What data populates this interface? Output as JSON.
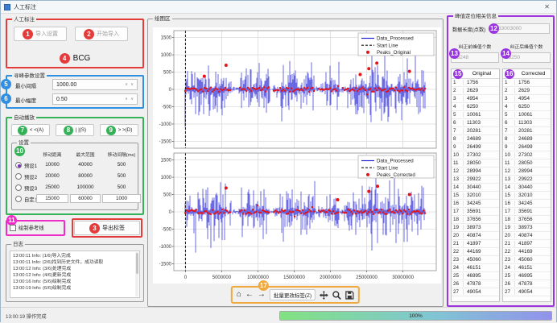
{
  "window": {
    "title": "人工标注",
    "close_glyph": "✕"
  },
  "glyphs": {
    "spin_up": "∧",
    "spin_down": "∨",
    "home": "⌂",
    "back": "←",
    "forward": "→"
  },
  "annotation_colors": {
    "red": "#e43b3b",
    "blue": "#2f8fe0",
    "green": "#35b257",
    "magenta": "#f02cc8",
    "purple": "#9a35e0",
    "orange": "#f0a93c"
  },
  "left": {
    "group1": {
      "title": "人工标注",
      "import_settings": {
        "badge": "1",
        "label": "导入设置"
      },
      "start_import": {
        "badge": "2",
        "label": "开始导入"
      },
      "signal_type": {
        "badge": "4",
        "label": "BCG"
      }
    },
    "peak_params": {
      "title": "寻峰参数设置",
      "min_interval": {
        "badge": "5",
        "label": "最小间隔",
        "value": "1000.00"
      },
      "min_amplitude": {
        "badge": "6",
        "label": "最小幅度",
        "value": "0.50"
      }
    },
    "autoplay": {
      "title": "自动播放",
      "btn_left": {
        "badge": "7",
        "label": "< <(A)"
      },
      "btn_pause": {
        "badge": "8",
        "label": "| |(S)"
      },
      "btn_right": {
        "badge": "9",
        "label": "> >(D)"
      },
      "settings": {
        "badge": "10",
        "title": "设置",
        "columns": [
          "移动距离",
          "最大范围",
          "移动间隔(ms)"
        ],
        "presets": [
          {
            "label": "预设1",
            "selected": true,
            "editable": false,
            "values": [
              "10000",
              "40000",
              "500"
            ]
          },
          {
            "label": "预设2",
            "selected": false,
            "editable": false,
            "values": [
              "20000",
              "80000",
              "500"
            ]
          },
          {
            "label": "预设3",
            "selected": false,
            "editable": false,
            "values": [
              "25000",
              "100000",
              "500"
            ]
          },
          {
            "label": "自定义",
            "selected": false,
            "editable": true,
            "values": [
              "15000",
              "60000",
              "1000"
            ]
          }
        ]
      }
    },
    "ref_line": {
      "badge": "11",
      "label": "绘制参考线",
      "checked": false
    },
    "export": {
      "badge": "3",
      "label": "导出标签"
    },
    "log": {
      "title": "日志",
      "lines": [
        "13:00:11 Info: (1/6)导入完成",
        "13:00:11 Info: (2/6)找到历史文件，成功读取",
        "13:00:12 Info: (3/6)处理完成",
        "13:00:12 Info: (4/6)更新完成",
        "13:00:16 Info: (5/6)绘制完成",
        "13:00:19 Info: (6/6)绘制完成"
      ]
    }
  },
  "plot": {
    "title": "绘图区",
    "toolbar": {
      "badge": "17",
      "batch_label": "批量更改标签(Z)"
    }
  },
  "right": {
    "title": "峰值定位相关信息",
    "data_length": {
      "badge": "12",
      "label": "数据长度(点数)",
      "value": "33003000"
    },
    "before": {
      "badge": "13",
      "label": "纠正前峰值个数",
      "value": "25248"
    },
    "after": {
      "badge": "14",
      "label": "纠正后峰值个数",
      "value": "25250"
    },
    "original": {
      "badge": "15",
      "header": "Original"
    },
    "corrected": {
      "badge": "16",
      "header": "Corrected"
    },
    "rows": [
      {
        "n": 1,
        "original": 1756,
        "corrected": 1756
      },
      {
        "n": 2,
        "original": 2629,
        "corrected": 2629
      },
      {
        "n": 3,
        "original": 4954,
        "corrected": 4954
      },
      {
        "n": 4,
        "original": 6250,
        "corrected": 6250
      },
      {
        "n": 5,
        "original": 10061,
        "corrected": 10061
      },
      {
        "n": 6,
        "original": 11303,
        "corrected": 11303
      },
      {
        "n": 7,
        "original": 20281,
        "corrected": 20281
      },
      {
        "n": 8,
        "original": 24689,
        "corrected": 24689
      },
      {
        "n": 9,
        "original": 26499,
        "corrected": 26499
      },
      {
        "n": 10,
        "original": 27302,
        "corrected": 27302
      },
      {
        "n": 11,
        "original": 28050,
        "corrected": 28050
      },
      {
        "n": 12,
        "original": 28994,
        "corrected": 28994
      },
      {
        "n": 13,
        "original": 29922,
        "corrected": 29922
      },
      {
        "n": 14,
        "original": 30440,
        "corrected": 30440
      },
      {
        "n": 15,
        "original": 32010,
        "corrected": 32010
      },
      {
        "n": 16,
        "original": 34245,
        "corrected": 34245
      },
      {
        "n": 17,
        "original": 35691,
        "corrected": 35691
      },
      {
        "n": 18,
        "original": 37656,
        "corrected": 37656
      },
      {
        "n": 19,
        "original": 38973,
        "corrected": 38973
      },
      {
        "n": 20,
        "original": 40874,
        "corrected": 40874
      },
      {
        "n": 21,
        "original": 41897,
        "corrected": 41897
      },
      {
        "n": 22,
        "original": 44169,
        "corrected": 44169
      },
      {
        "n": 23,
        "original": 45060,
        "corrected": 45060
      },
      {
        "n": 24,
        "original": 46151,
        "corrected": 46151
      },
      {
        "n": 25,
        "original": 46995,
        "corrected": 46995
      },
      {
        "n": 26,
        "original": 47878,
        "corrected": 47878
      },
      {
        "n": 27,
        "original": 49054,
        "corrected": 49054
      }
    ]
  },
  "statusbar": {
    "text": "13:00:19 操作完成",
    "progress": "100%"
  },
  "chart_data": [
    {
      "type": "line",
      "title": "",
      "xlim": [
        -1600000,
        34600000
      ],
      "ylim": [
        -1700,
        1700
      ],
      "xticks": [
        0,
        5000000,
        10000000,
        15000000,
        20000000,
        25000000,
        30000000
      ],
      "yticks": [
        -1500,
        -1000,
        -500,
        0,
        500,
        1000,
        1500
      ],
      "grid": true,
      "show_x_tick_labels": false,
      "legend_position": "upper right",
      "legend": [
        {
          "label": "Data_Processed",
          "color": "#2121d8",
          "marker": "line"
        },
        {
          "label": "Start Line",
          "color": "#111111",
          "marker": "dashed"
        },
        {
          "label": "Peaks_Original",
          "color": "#e81212",
          "marker": "dot"
        }
      ],
      "start_line_x": 0,
      "signal_color": "#2121d8",
      "peaks_color": "#e81212",
      "baseline_range": [
        -100000,
        33150000
      ],
      "baseline_amplitude": 100,
      "signal_bursts": [
        [
          -100000,
          1400000,
          1350
        ],
        [
          1400000,
          3000000,
          900
        ],
        [
          3000000,
          5600000,
          1150
        ],
        [
          5600000,
          6300000,
          450
        ],
        [
          7300000,
          11700000,
          1000
        ],
        [
          12100000,
          13000000,
          300
        ],
        [
          13000000,
          17900000,
          980
        ],
        [
          18300000,
          19200000,
          260
        ],
        [
          19200000,
          21200000,
          900
        ],
        [
          21600000,
          22300000,
          320
        ],
        [
          22300000,
          25600000,
          1050
        ],
        [
          25600000,
          28200000,
          1300
        ],
        [
          28200000,
          31600000,
          1100
        ],
        [
          31600000,
          33100000,
          1450
        ]
      ],
      "peak_band": {
        "y_center": 0,
        "y_jitter": 70
      },
      "outlier_peaks": [
        [
          2600000,
          380
        ],
        [
          5600000,
          700
        ],
        [
          24100000,
          430
        ],
        [
          25300000,
          600
        ],
        [
          26400000,
          760
        ],
        [
          30900000,
          520
        ]
      ],
      "seed": 7
    },
    {
      "type": "line",
      "title": "",
      "xlim": [
        -1600000,
        34600000
      ],
      "ylim": [
        -1700,
        1700
      ],
      "xticks": [
        0,
        5000000,
        10000000,
        15000000,
        20000000,
        25000000,
        30000000
      ],
      "yticks": [
        -1500,
        -1000,
        -500,
        0,
        500,
        1000,
        1500
      ],
      "grid": true,
      "show_x_tick_labels": true,
      "legend_position": "upper right",
      "legend": [
        {
          "label": "Data_Processed",
          "color": "#2121d8",
          "marker": "line"
        },
        {
          "label": "Start Line",
          "color": "#111111",
          "marker": "dashed"
        },
        {
          "label": "Peaks_Corrected",
          "color": "#e81212",
          "marker": "dot"
        }
      ],
      "start_line_x": 0,
      "signal_color": "#2121d8",
      "peaks_color": "#e81212",
      "baseline_range": [
        -100000,
        33150000
      ],
      "baseline_amplitude": 100,
      "signal_bursts": [
        [
          -100000,
          1400000,
          1350
        ],
        [
          1400000,
          3000000,
          900
        ],
        [
          3000000,
          5600000,
          1150
        ],
        [
          5600000,
          6300000,
          450
        ],
        [
          7300000,
          11700000,
          1000
        ],
        [
          12100000,
          13000000,
          300
        ],
        [
          13000000,
          17900000,
          980
        ],
        [
          18300000,
          19200000,
          260
        ],
        [
          19200000,
          21200000,
          900
        ],
        [
          21600000,
          22300000,
          320
        ],
        [
          22300000,
          25600000,
          1050
        ],
        [
          25600000,
          28200000,
          1300
        ],
        [
          28200000,
          31600000,
          1100
        ],
        [
          31600000,
          33100000,
          1450
        ]
      ],
      "peak_band": {
        "y_center": 0,
        "y_jitter": 70
      },
      "outlier_peaks": [
        [
          5600000,
          690
        ],
        [
          21000000,
          350
        ],
        [
          25300000,
          590
        ],
        [
          26500000,
          740
        ],
        [
          30900000,
          500
        ]
      ],
      "seed": 13
    }
  ]
}
